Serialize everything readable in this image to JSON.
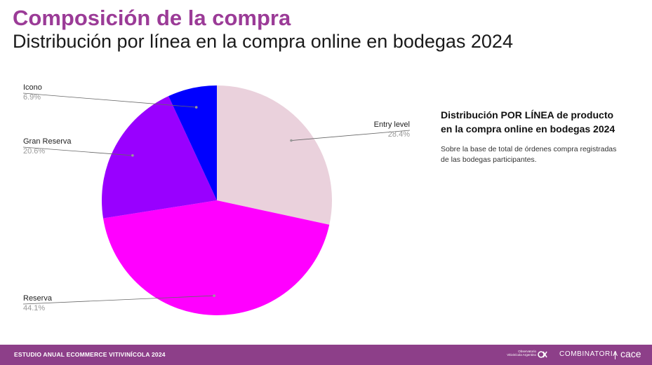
{
  "header": {
    "title": "Composición de la compra",
    "subtitle": "Distribución por línea en la compra online en bodegas 2024"
  },
  "side_panel": {
    "heading_line1": "Distribución POR LÍNEA de producto",
    "heading_line2": "en la compra online en bodegas 2024",
    "note_line1": "Sobre la base de total de órdenes compra registradas",
    "note_line2": "de las bodegas participantes."
  },
  "footer": {
    "text": "ESTUDIO ANUAL ECOMMERCE VITIVINÍCOLA 2024",
    "logo_observatorio": "Observatorio Vitivinícola Argentino",
    "logo_combinatoria": "COMBINATORIA",
    "logo_cace": "cace",
    "bar_color": "#8d3f89"
  },
  "chart_data": {
    "type": "pie",
    "title": "",
    "start_angle_deg": 0,
    "direction": "clockwise",
    "slices": [
      {
        "label": "Entry level",
        "value": 28.4,
        "value_label": "28.4%",
        "color": "#ead1dc"
      },
      {
        "label": "Reserva",
        "value": 44.1,
        "value_label": "44.1%",
        "color": "#ff00ff"
      },
      {
        "label": "Gran Reserva",
        "value": 20.6,
        "value_label": "20.6%",
        "color": "#9900ff"
      },
      {
        "label": "Icono",
        "value": 6.9,
        "value_label": "6.9%",
        "color": "#0000ff"
      }
    ],
    "label_placement": [
      "right",
      "left",
      "left",
      "left"
    ]
  }
}
